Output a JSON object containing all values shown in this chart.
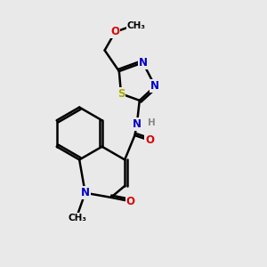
{
  "background_color": "#e9e9e9",
  "atom_colors": {
    "C": "#000000",
    "N": "#0000cc",
    "O": "#dd0000",
    "S": "#aaaa00",
    "H": "#888888"
  },
  "bond_color": "#000000",
  "bond_width": 1.8,
  "figsize": [
    3.0,
    3.0
  ],
  "dpi": 100
}
